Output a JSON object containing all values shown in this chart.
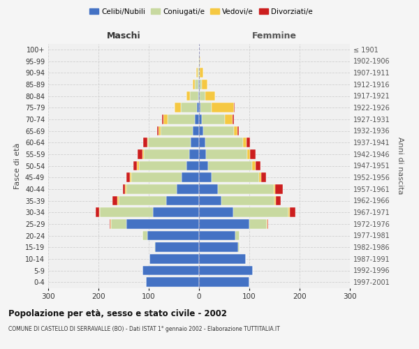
{
  "age_groups": [
    "0-4",
    "5-9",
    "10-14",
    "15-19",
    "20-24",
    "25-29",
    "30-34",
    "35-39",
    "40-44",
    "45-49",
    "50-54",
    "55-59",
    "60-64",
    "65-69",
    "70-74",
    "75-79",
    "80-84",
    "85-89",
    "90-94",
    "95-99",
    "100+"
  ],
  "birth_years": [
    "1997-2001",
    "1992-1996",
    "1987-1991",
    "1982-1986",
    "1977-1981",
    "1972-1976",
    "1967-1971",
    "1962-1966",
    "1957-1961",
    "1952-1956",
    "1947-1951",
    "1942-1946",
    "1937-1941",
    "1932-1936",
    "1927-1931",
    "1922-1926",
    "1917-1921",
    "1912-1916",
    "1907-1911",
    "1902-1906",
    "≤ 1901"
  ],
  "males": {
    "celibi": [
      105,
      112,
      98,
      87,
      103,
      145,
      92,
      65,
      45,
      35,
      25,
      20,
      16,
      12,
      8,
      4,
      2,
      1,
      0,
      0,
      0
    ],
    "coniugati": [
      0,
      0,
      0,
      2,
      10,
      30,
      105,
      95,
      100,
      100,
      95,
      90,
      85,
      65,
      55,
      32,
      16,
      7,
      3,
      1,
      0
    ],
    "vedovi": [
      0,
      0,
      0,
      0,
      0,
      1,
      1,
      2,
      2,
      2,
      3,
      2,
      2,
      4,
      8,
      12,
      7,
      4,
      2,
      1,
      0
    ],
    "divorziati": [
      0,
      0,
      0,
      0,
      0,
      2,
      8,
      10,
      4,
      7,
      8,
      10,
      8,
      2,
      2,
      1,
      0,
      0,
      0,
      0,
      0
    ]
  },
  "females": {
    "nubili": [
      100,
      107,
      93,
      78,
      72,
      100,
      68,
      45,
      38,
      25,
      18,
      14,
      12,
      9,
      6,
      3,
      2,
      1,
      0,
      0,
      0
    ],
    "coniugate": [
      0,
      0,
      0,
      2,
      8,
      35,
      110,
      105,
      110,
      95,
      88,
      82,
      76,
      60,
      45,
      22,
      10,
      4,
      2,
      1,
      0
    ],
    "vedove": [
      0,
      0,
      0,
      0,
      0,
      1,
      3,
      3,
      4,
      4,
      6,
      6,
      6,
      8,
      16,
      45,
      20,
      11,
      6,
      2,
      0
    ],
    "divorziate": [
      0,
      0,
      0,
      0,
      0,
      2,
      10,
      9,
      14,
      10,
      10,
      11,
      7,
      2,
      2,
      1,
      0,
      0,
      0,
      0,
      0
    ]
  },
  "colors": {
    "celibi_nubili": "#4472C4",
    "coniugati": "#C8D9A0",
    "vedovi": "#F5C842",
    "divorziati": "#CC1E1E"
  },
  "xlim": 300,
  "title": "Popolazione per età, sesso e stato civile - 2002",
  "subtitle": "COMUNE DI CASTELLO DI SERRAVALLE (BO) - Dati ISTAT 1° gennaio 2002 - Elaborazione TUTTITALIA.IT",
  "ylabel_left": "Fasce di età",
  "ylabel_right": "Anni di nascita",
  "xlabel_left": "Maschi",
  "xlabel_right": "Femmine",
  "bg_color": "#f5f5f5",
  "plot_bg": "#f0f0f0",
  "grid_color": "#d0d0d0"
}
